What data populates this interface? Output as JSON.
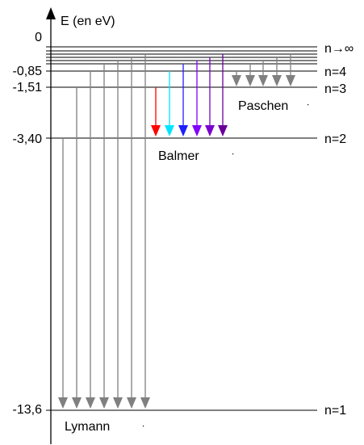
{
  "axis": {
    "label": "E (en eV)"
  },
  "energy_values": [
    "0",
    "-0,85",
    "-1,51",
    "-3,40",
    "-13,6"
  ],
  "levels": [
    "n→∞",
    "n=4",
    "n=3",
    "n=2",
    "n=1"
  ],
  "series": {
    "lyman": "Lymann",
    "balmer": "Balmer",
    "paschen": "Paschen"
  },
  "colors": {
    "level_line": "#000000",
    "gray_transition": "#808080",
    "balmer": [
      "#ff0000",
      "#00e5ff",
      "#1f1fff",
      "#8000ff",
      "#7a00cc",
      "#6a0099"
    ]
  }
}
